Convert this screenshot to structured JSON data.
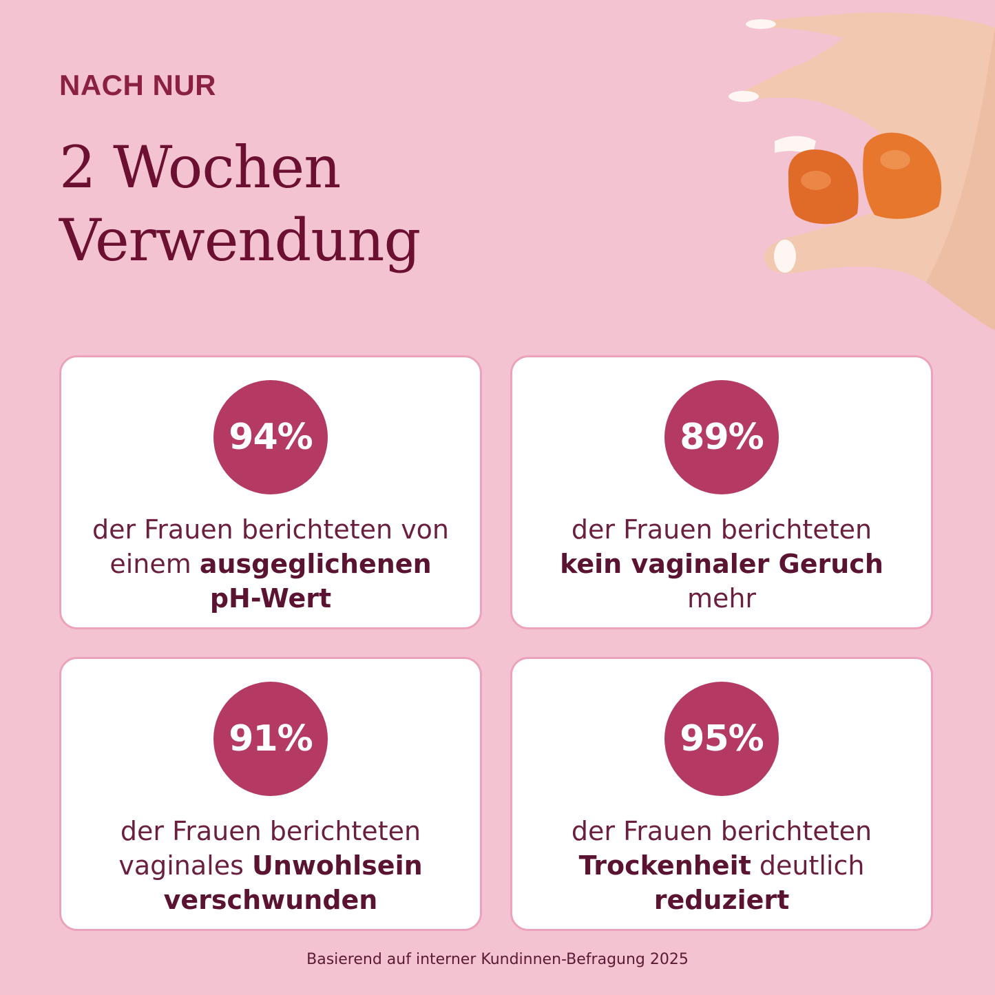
{
  "header": {
    "eyebrow": "NACH NUR",
    "title_line1": "2 Wochen",
    "title_line2": "Verwendung"
  },
  "image": {
    "icon": "hand-holding-gummies"
  },
  "stats": [
    {
      "value": "94%",
      "line1": "der Frauen berichteten von",
      "line2_normal": "einem ",
      "line2_bold": "ausgeglichenen",
      "line3_bold": "pH-Wert",
      "line3_normal": ""
    },
    {
      "value": "89%",
      "line1": "der Frauen berichteten",
      "line2_normal": "",
      "line2_bold": "kein vaginaler Geruch",
      "line3_bold": "",
      "line3_normal": "mehr"
    },
    {
      "value": "91%",
      "line1": "der Frauen berichteten",
      "line2_normal": "vaginales ",
      "line2_bold": "Unwohlsein",
      "line3_bold": "verschwunden",
      "line3_normal": ""
    },
    {
      "value": "95%",
      "line1": "der Frauen berichteten",
      "line2_normal": " deutlich",
      "line2_bold": "Trockenheit",
      "line3_bold": "reduziert",
      "line3_normal": ""
    }
  ],
  "footnote": "Basierend auf interner Kundinnen-Befragung 2025",
  "colors": {
    "background": "#f4c3d1",
    "badge": "#b43a64",
    "text_dark": "#6b1030",
    "card_border": "#eba3bb"
  }
}
